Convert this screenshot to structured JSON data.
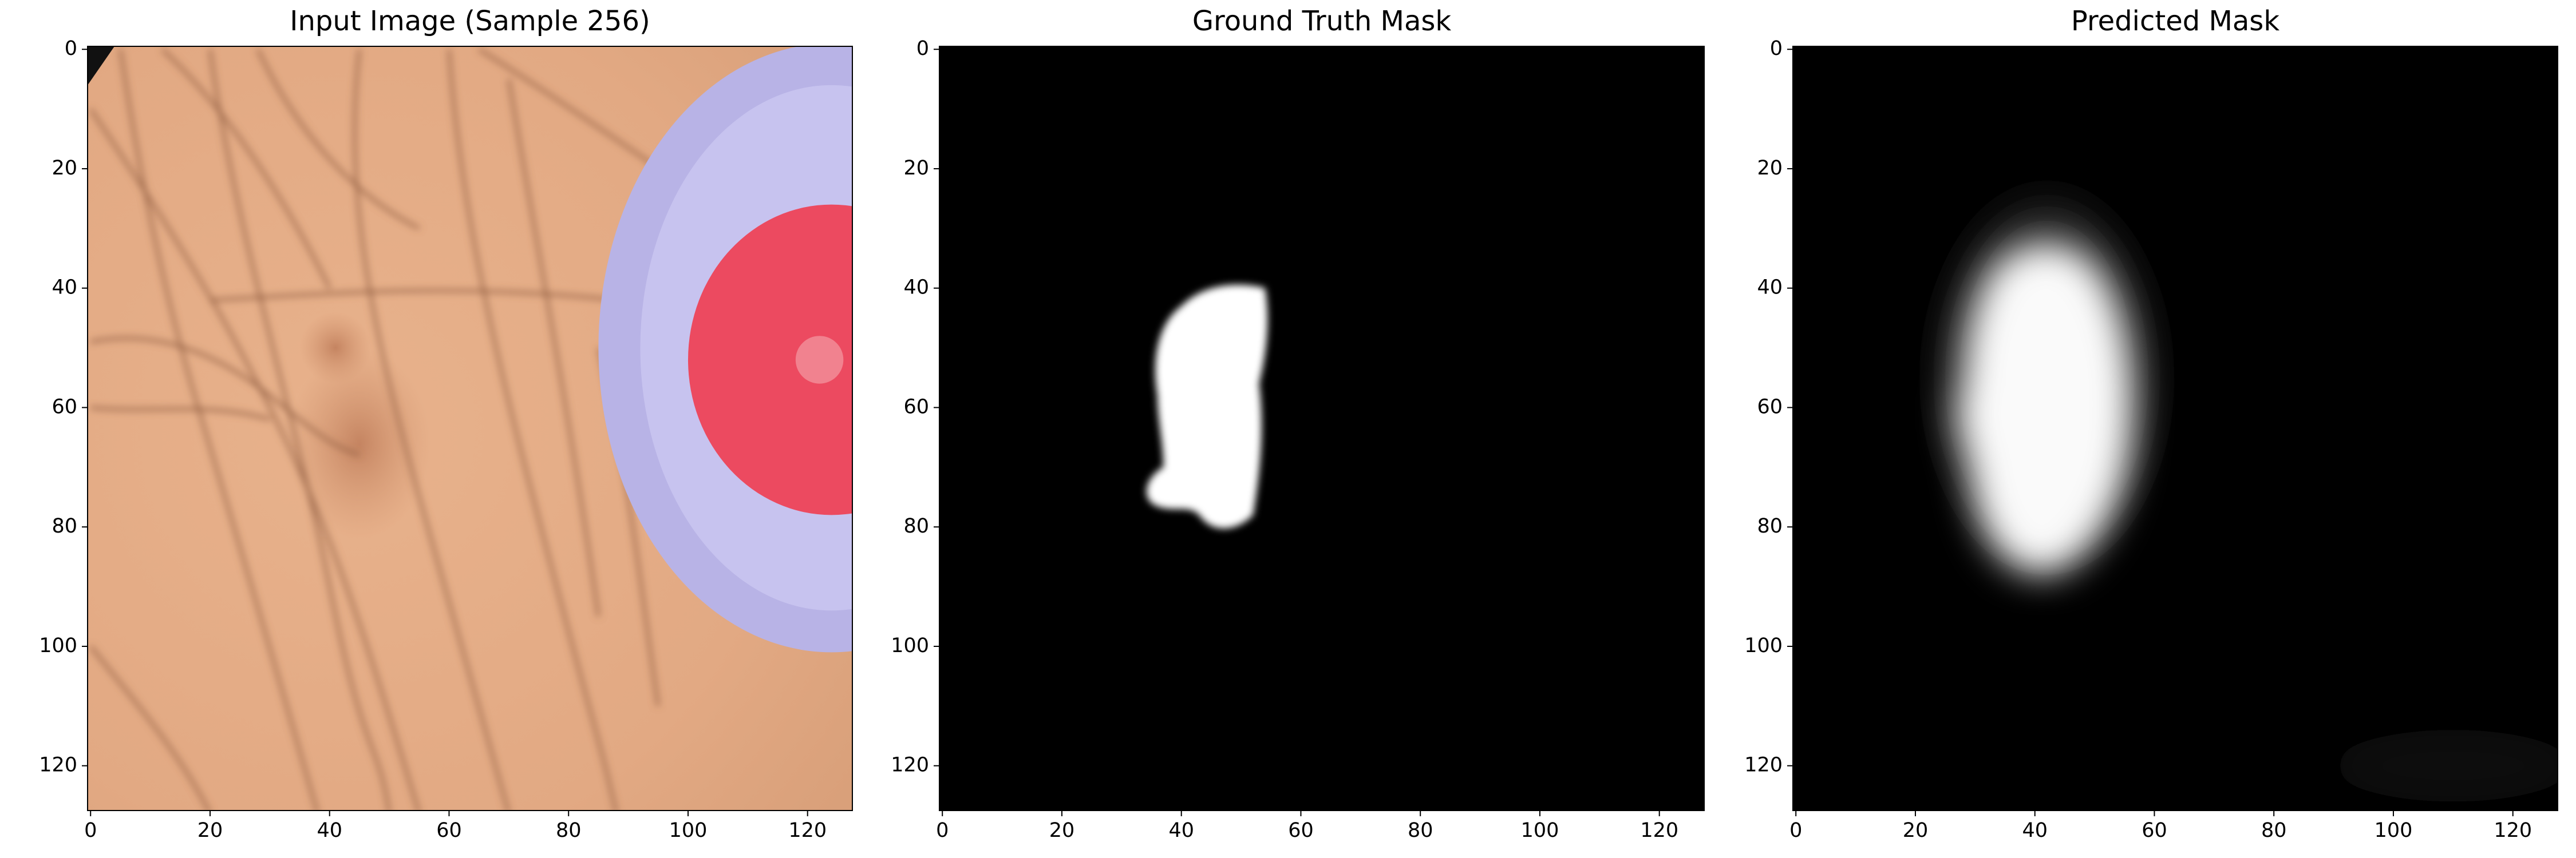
{
  "chart_data": [
    {
      "type": "image",
      "title": "Input Image (Sample 256)",
      "xlim": [
        -0.5,
        127.5
      ],
      "ylim": [
        127.5,
        -0.5
      ],
      "xticks": [
        0,
        20,
        40,
        60,
        80,
        100,
        120
      ],
      "yticks": [
        0,
        20,
        40,
        60,
        80,
        100,
        120
      ]
    },
    {
      "type": "image",
      "title": "Ground Truth Mask",
      "xlim": [
        -0.5,
        127.5
      ],
      "ylim": [
        127.5,
        -0.5
      ],
      "xticks": [
        0,
        20,
        40,
        60,
        80,
        100,
        120
      ],
      "yticks": [
        0,
        20,
        40,
        60,
        80,
        100,
        120
      ]
    },
    {
      "type": "image",
      "title": "Predicted Mask",
      "xlim": [
        -0.5,
        127.5
      ],
      "ylim": [
        127.5,
        -0.5
      ],
      "xticks": [
        0,
        20,
        40,
        60,
        80,
        100,
        120
      ],
      "yticks": [
        0,
        20,
        40,
        60,
        80,
        100,
        120
      ]
    }
  ]
}
